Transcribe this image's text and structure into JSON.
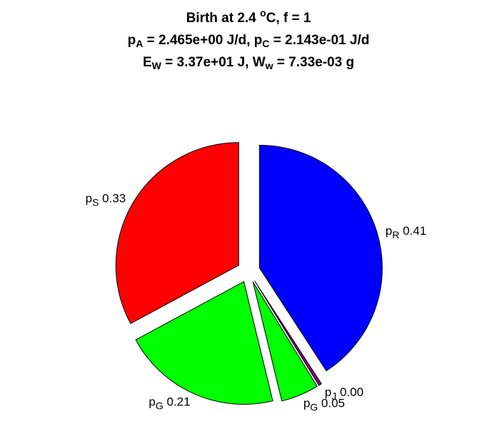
{
  "title": {
    "line1": {
      "prefix": "Birth at 2.4 ",
      "sup": "o",
      "suffix": "C, f = 1"
    },
    "line2": {
      "p1": "p",
      "p1_sub": "A",
      "p1_val": " = 2.465e+00 J/d, ",
      "p2": "p",
      "p2_sub": "C",
      "p2_val": " = 2.143e-01 J/d"
    },
    "line3": {
      "e": "E",
      "e_sub": "W",
      "e_val": " = 3.37e+01 J, ",
      "w": "W",
      "w_sub": "w",
      "w_val": " = 7.33e-03 g"
    }
  },
  "chart_data": {
    "type": "pie",
    "title": "Birth at 2.4 oC, f = 1 / pA = 2.465e+00 J/d, pC = 2.143e-01 J/d / EW = 3.37e+01 J, Ww = 7.33e-03 g",
    "slices": [
      {
        "symbol": "p",
        "sub": "R",
        "label": "0.41",
        "value": 0.41,
        "color": "#0000ff",
        "exploded": true
      },
      {
        "symbol": "p",
        "sub": "J",
        "label": "0.00",
        "value": 0.004,
        "color": "#800080",
        "exploded": true
      },
      {
        "symbol": "p",
        "sub": "G",
        "label": "0.05",
        "value": 0.05,
        "color": "#00ff00",
        "exploded": true
      },
      {
        "symbol": "p",
        "sub": "G",
        "label": "0.21",
        "value": 0.21,
        "color": "#00ff00",
        "exploded": true
      },
      {
        "symbol": "p",
        "sub": "S",
        "label": "0.33",
        "value": 0.33,
        "color": "#ff0000",
        "exploded": true
      }
    ]
  }
}
